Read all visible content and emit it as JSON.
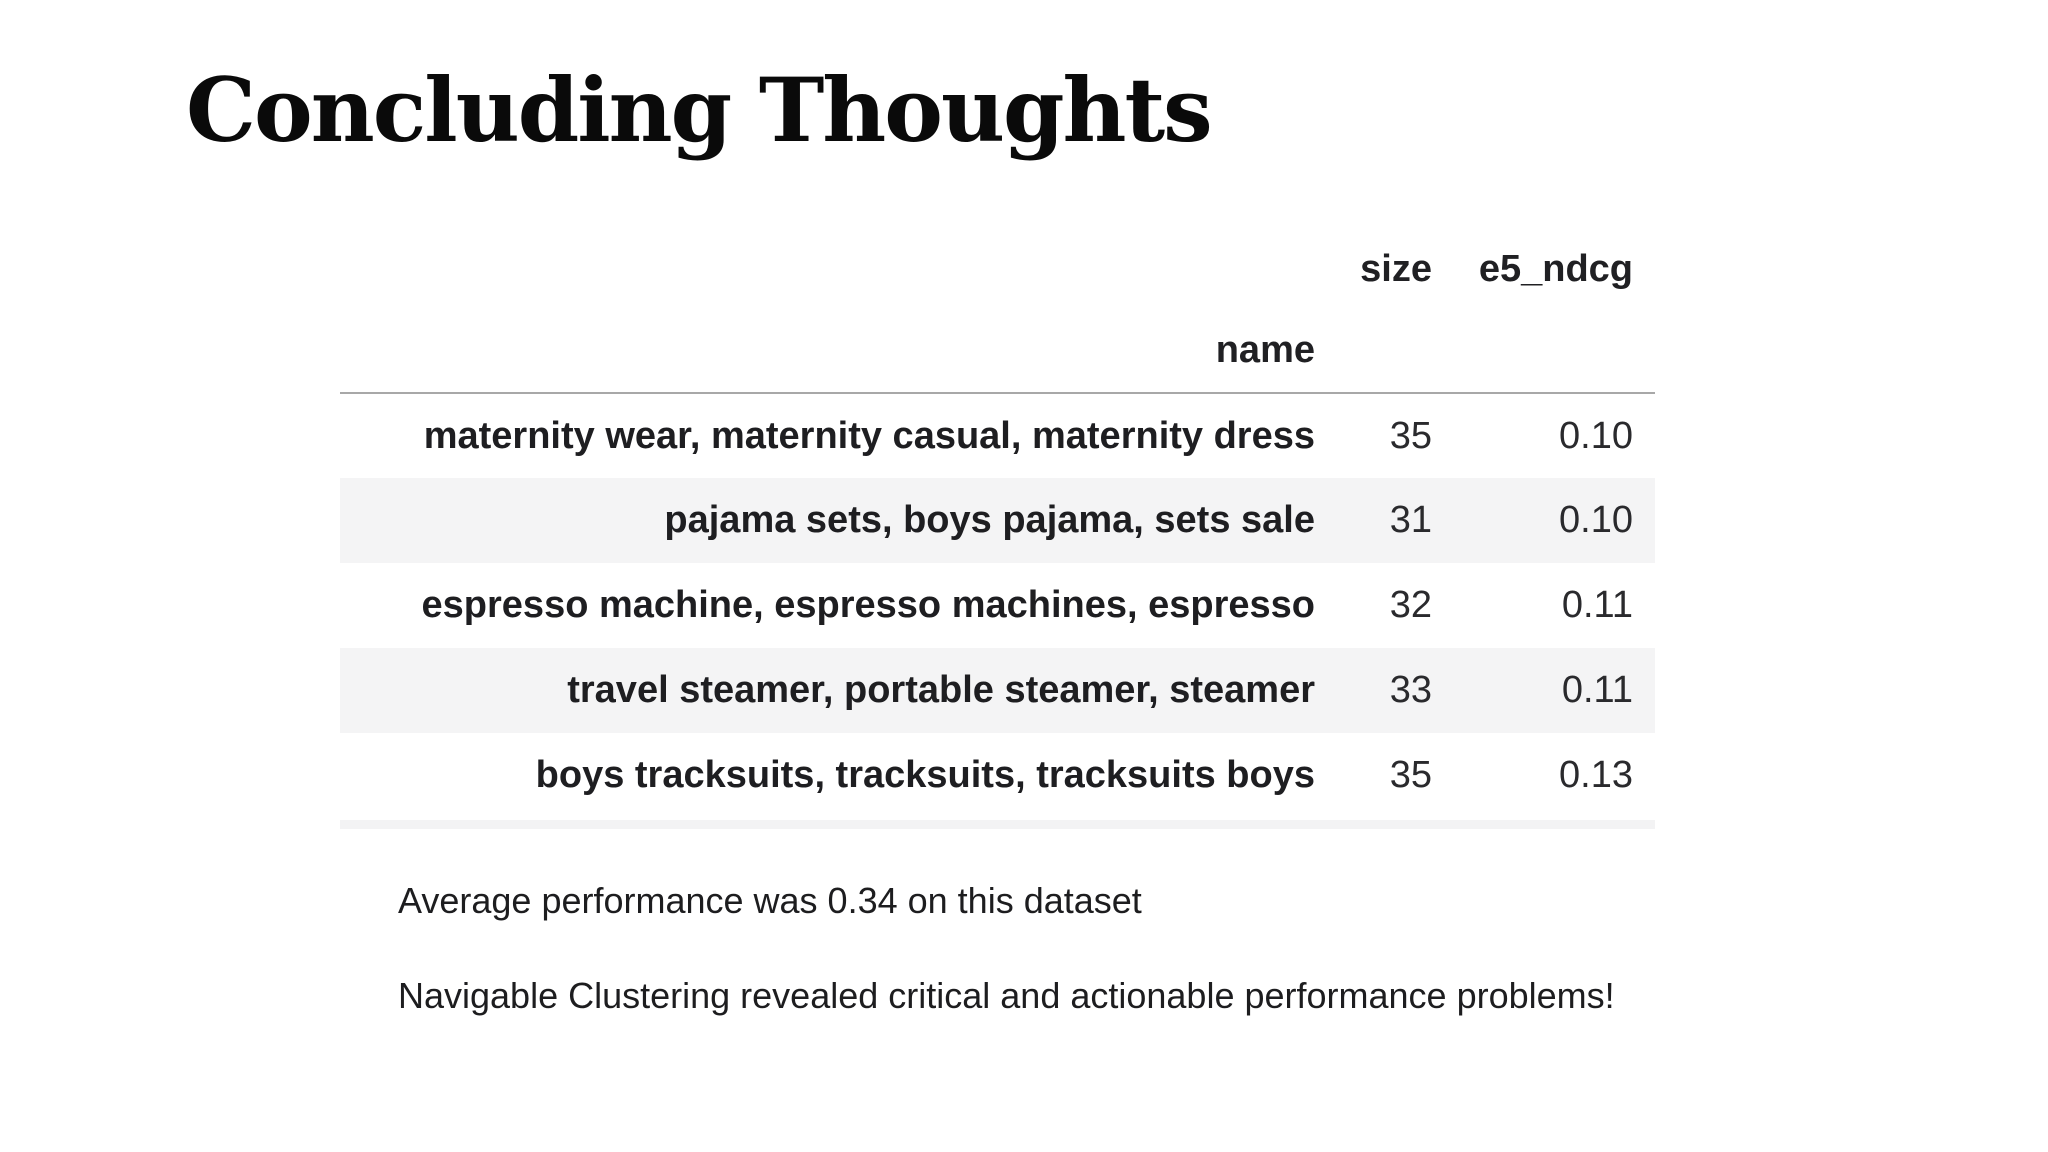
{
  "slide": {
    "title": "Concluding Thoughts"
  },
  "table": {
    "type": "table",
    "index_name": "name",
    "columns": [
      "size",
      "e5_ndcg"
    ],
    "rows": [
      {
        "name": "maternity wear, maternity casual, maternity dress",
        "size": "35",
        "e5_ndcg": "0.10"
      },
      {
        "name": "pajama sets, boys pajama, sets sale",
        "size": "31",
        "e5_ndcg": "0.10"
      },
      {
        "name": "espresso machine, espresso machines, espresso",
        "size": "32",
        "e5_ndcg": "0.11"
      },
      {
        "name": "travel steamer, portable steamer, steamer",
        "size": "33",
        "e5_ndcg": "0.11"
      },
      {
        "name": "boys tracksuits, tracksuits, tracksuits boys",
        "size": "35",
        "e5_ndcg": "0.13"
      }
    ],
    "columns_split": {
      "size": "size",
      "e5_ndcg": "e5_ndcg"
    },
    "stripe_color": "#f4f4f5",
    "header_line_color": "#a8a8a8"
  },
  "notes": {
    "average_performance": "Average performance was 0.34 on this dataset",
    "clustering_insight": "Navigable Clustering revealed critical and actionable performance problems!"
  },
  "colors": {
    "background": "#ffffff",
    "text": "#1d1d1f",
    "title": "#0a0a0a"
  }
}
